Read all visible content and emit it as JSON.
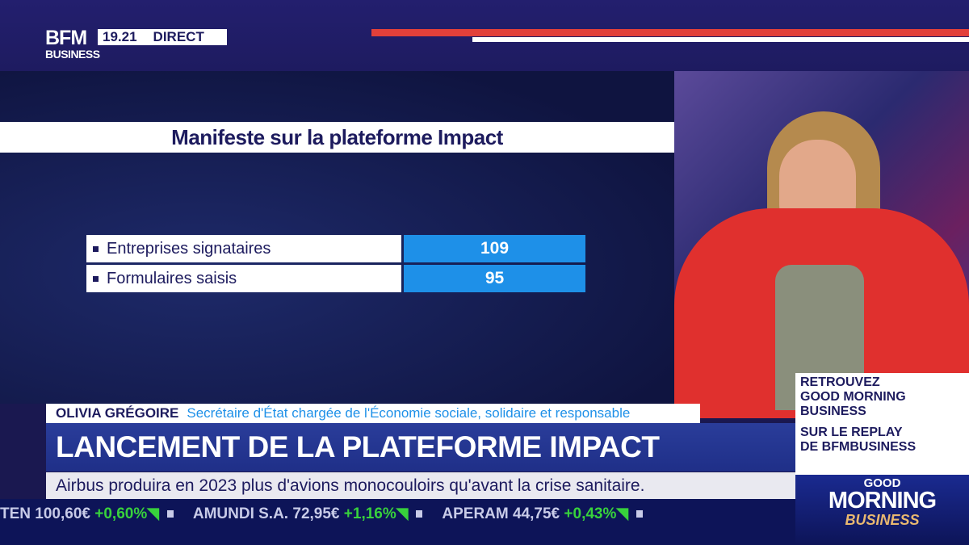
{
  "header": {
    "logo_top": "BFM",
    "logo_bottom": "BUSINESS",
    "time": "19.21",
    "live": "DIRECT"
  },
  "graphic": {
    "title": "Manifeste sur la plateforme Impact",
    "rows": [
      {
        "label": "Entreprises signataires",
        "value": "109"
      },
      {
        "label": "Formulaires saisis",
        "value": "95"
      }
    ]
  },
  "lower_third": {
    "name": "OLIVIA GRÉGOIRE",
    "role": "Secrétaire d'État chargée de l'Économie sociale, solidaire et responsable",
    "headline": "LANCEMENT DE LA PLATEFORME IMPACT",
    "news": "Airbus produira en 2023 plus d'avions monocouloirs qu'avant la crise sanitaire."
  },
  "ticker": [
    {
      "name": "TEN",
      "price": "100,60€",
      "change": "+0,60%"
    },
    {
      "name": "AMUNDI S.A.",
      "price": "72,95€",
      "change": "+1,16%"
    },
    {
      "name": "APERAM",
      "price": "44,75€",
      "change": "+0,43%"
    }
  ],
  "promo": {
    "line1": "RETROUVEZ",
    "line2": "GOOD MORNING",
    "line3": "BUSINESS",
    "line4": "SUR LE REPLAY",
    "line5": "DE BFMBUSINESS"
  },
  "show_logo": {
    "good": "GOOD",
    "morning": "MORNING",
    "business": "BUSINESS"
  },
  "colors": {
    "navy": "#1d1b5e",
    "accent_blue": "#1e90e8",
    "red": "#e2403a",
    "ticker_up": "#38d23c"
  }
}
